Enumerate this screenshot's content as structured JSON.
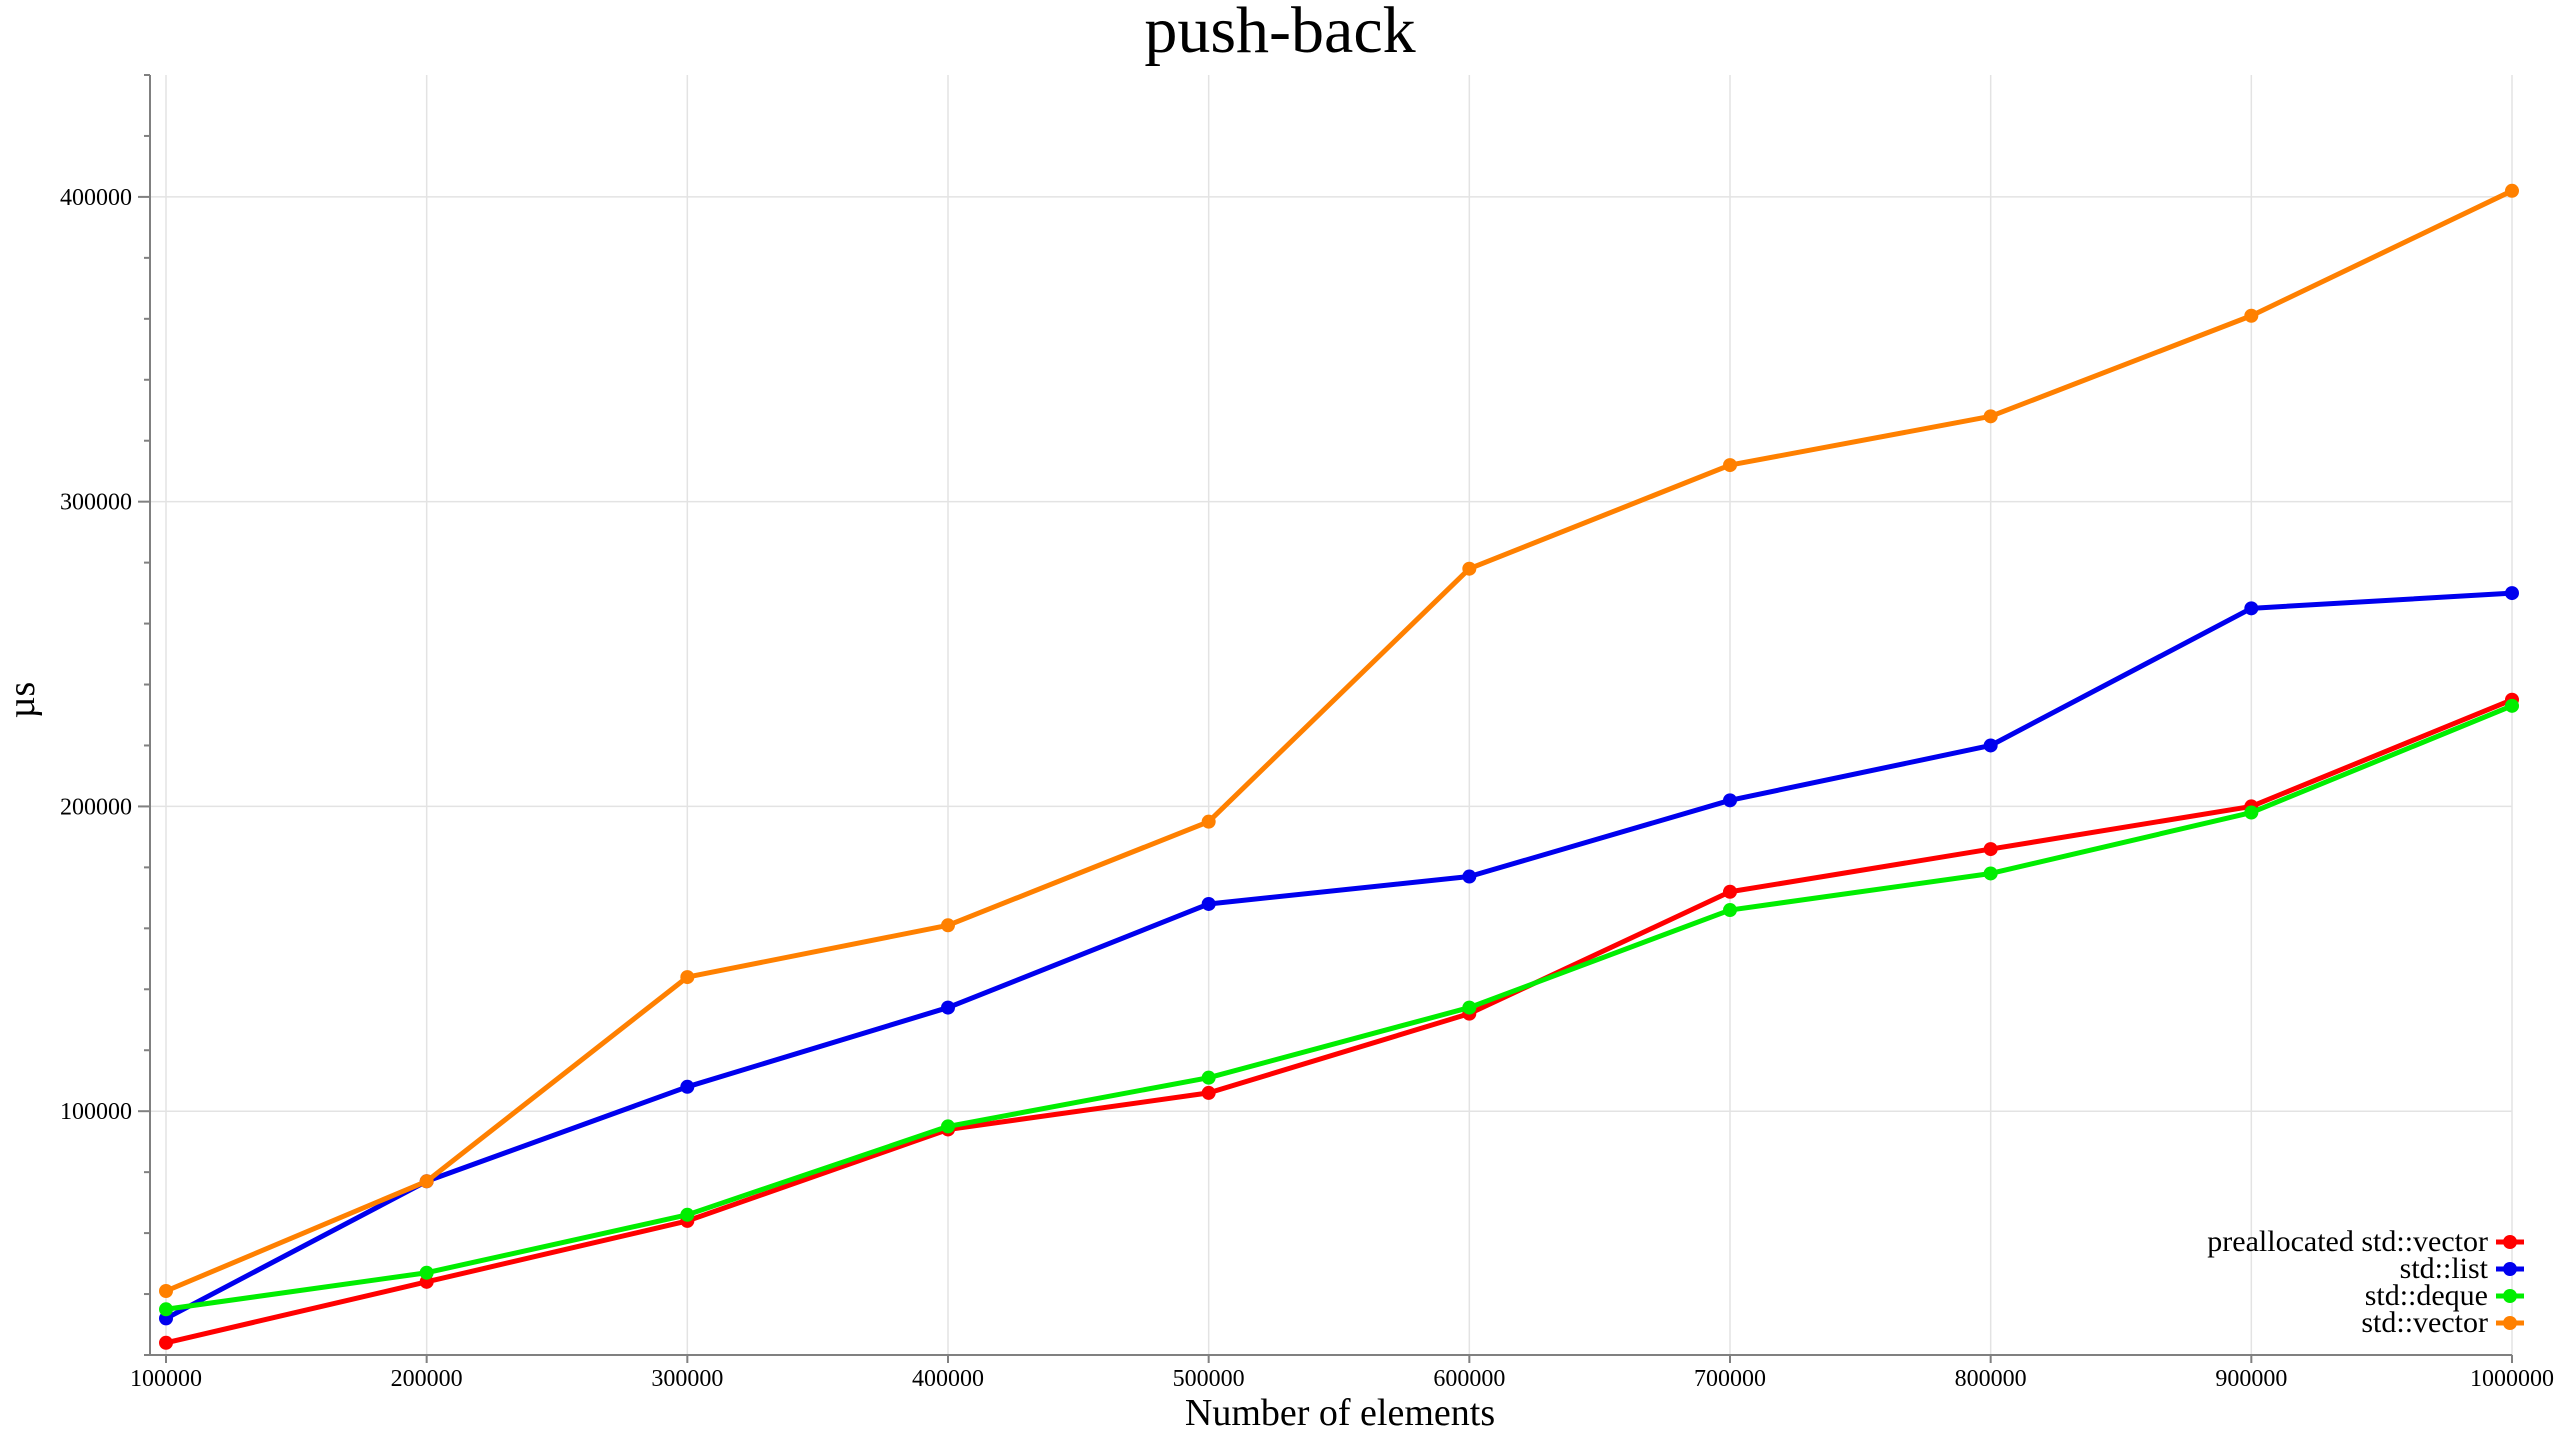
{
  "chart_data": {
    "type": "line",
    "title": "push-back",
    "xlabel": "Number of elements",
    "ylabel": "µs",
    "x": [
      100000,
      200000,
      300000,
      400000,
      500000,
      600000,
      700000,
      800000,
      900000,
      1000000
    ],
    "x_tick_labels": [
      "100000",
      "200000",
      "300000",
      "400000",
      "500000",
      "600000",
      "700000",
      "800000",
      "900000",
      "1000000"
    ],
    "y_ticks": [
      100000,
      200000,
      300000,
      400000
    ],
    "y_tick_labels": [
      "100000",
      "200000",
      "300000",
      "400000"
    ],
    "xlim": [
      100000,
      1000000
    ],
    "ylim": [
      20000,
      440000
    ],
    "grid": true,
    "legend_position": "bottom-right",
    "series": [
      {
        "name": "preallocated std::vector",
        "color": "#ff0000",
        "values": [
          24000,
          44000,
          64000,
          94000,
          106000,
          132000,
          172000,
          186000,
          200000,
          235000
        ]
      },
      {
        "name": "std::list",
        "color": "#0000ee",
        "values": [
          32000,
          77000,
          108000,
          134000,
          168000,
          177000,
          202000,
          220000,
          265000,
          270000
        ]
      },
      {
        "name": "std::deque",
        "color": "#00ee00",
        "values": [
          35000,
          47000,
          66000,
          95000,
          111000,
          134000,
          166000,
          178000,
          198000,
          233000
        ]
      },
      {
        "name": "std::vector",
        "color": "#ff8000",
        "values": [
          41000,
          77000,
          144000,
          161000,
          195000,
          278000,
          312000,
          328000,
          361000,
          402000
        ]
      }
    ]
  }
}
